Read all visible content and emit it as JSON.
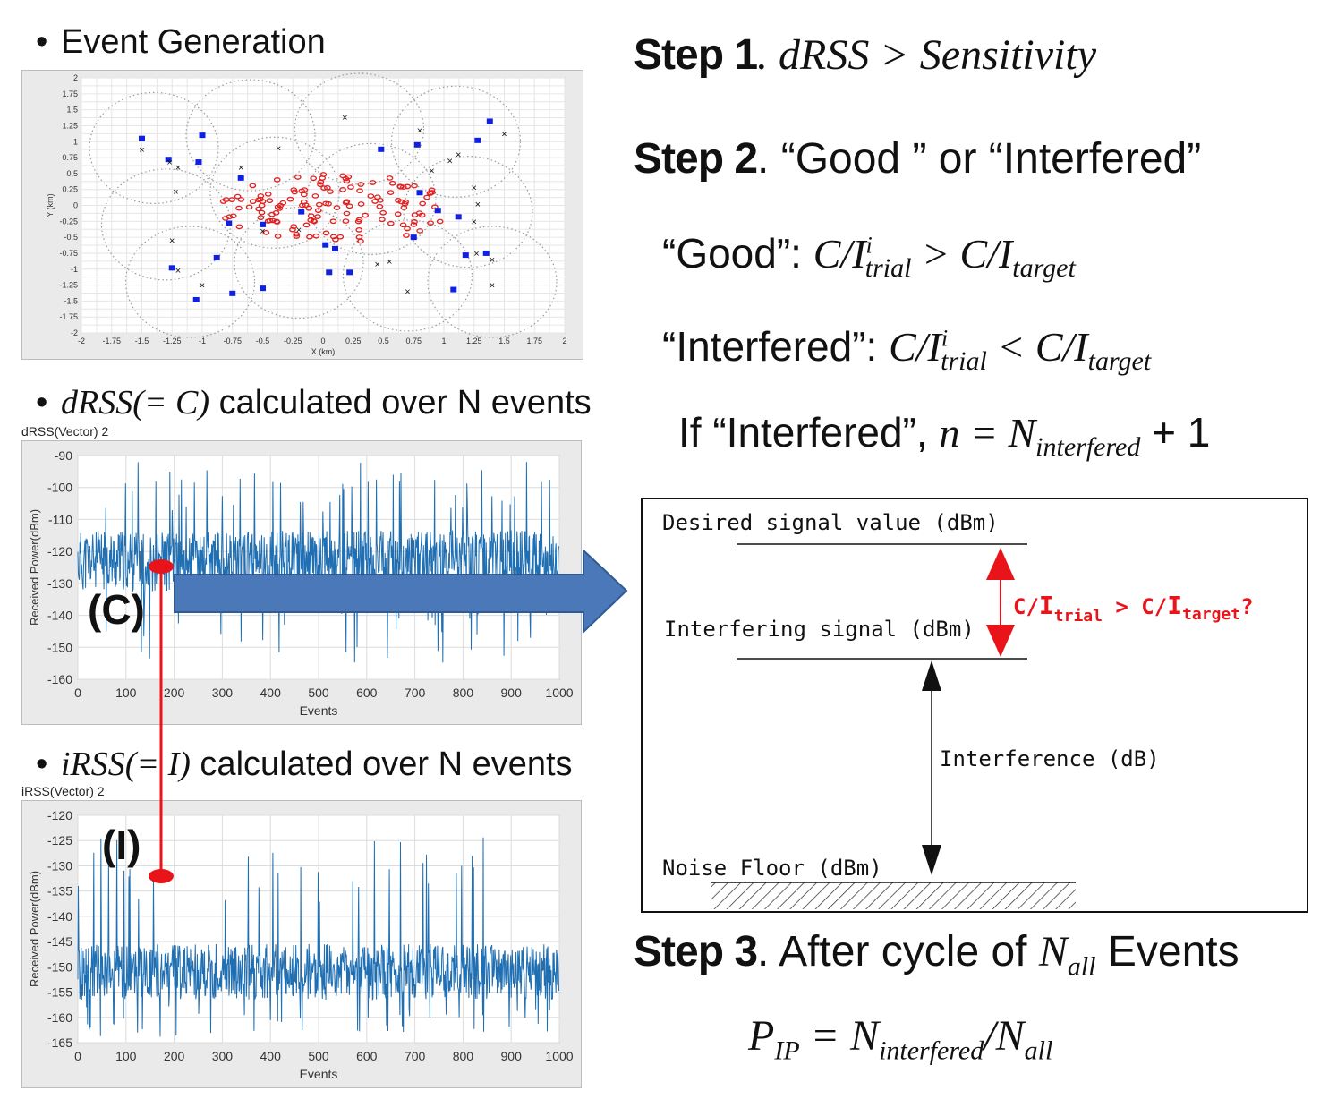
{
  "bullets": {
    "event_generation": "Event Generation",
    "drss_math": "dRSS(= C)",
    "drss_text": " calculated over N events",
    "irss_math": "iRSS(= I)",
    "irss_text": " calculated over N events"
  },
  "scatter_plot": {
    "ylabel": "Y (km)",
    "xlabel": "X (km)",
    "xticks": [
      "-2",
      "-1.75",
      "-1.5",
      "-1.25",
      "-1",
      "-0.75",
      "-0.5",
      "-0.25",
      "0",
      "0.25",
      "0.5",
      "0.75",
      "1",
      "1.25",
      "1.5",
      "1.75",
      "2"
    ],
    "yticks": [
      "2",
      "1.75",
      "1.5",
      "1.25",
      "1",
      "0.75",
      "0.5",
      "0.25",
      "0",
      "-0.25",
      "-0.5",
      "-0.75",
      "-1",
      "-1.25",
      "-1.5",
      "-1.75",
      "-2"
    ]
  },
  "drss_plot": {
    "title": "dRSS(Vector) 2",
    "ylabel": "Received Power(dBm)",
    "xlabel": "Events",
    "xticks": [
      "0",
      "100",
      "200",
      "300",
      "400",
      "500",
      "600",
      "700",
      "800",
      "900",
      "1000"
    ],
    "yticks": [
      "-90",
      "-100",
      "-110",
      "-120",
      "-130",
      "-140",
      "-150",
      "-160"
    ],
    "marker_label": "(C)"
  },
  "irss_plot": {
    "title": "iRSS(Vector) 2",
    "ylabel": "Received Power(dBm)",
    "xlabel": "Events",
    "xticks": [
      "0",
      "100",
      "200",
      "300",
      "400",
      "500",
      "600",
      "700",
      "800",
      "900",
      "1000"
    ],
    "yticks": [
      "-120",
      "-125",
      "-130",
      "-135",
      "-140",
      "-145",
      "-150",
      "-155",
      "-160",
      "-165"
    ],
    "marker_label": "(I)"
  },
  "steps": {
    "step1_label": "Step 1",
    "step1_expr": ". dRSS > Sensitivity",
    "step2_label": "Step 2",
    "step2_text": ". “Good ” or “Interfered”",
    "good_label": "“Good”: ",
    "interfered_label": "“Interfered”: ",
    "if_label": "If “Interfered”, ",
    "step3_label": "Step 3",
    "step3_text": ". After cycle of ",
    "step3_events": " Events"
  },
  "diagram": {
    "desired": "Desired signal value (dBm)",
    "interfering": "Interfering signal (dBm)",
    "interference": "Interference (dB)",
    "noise": "Noise Floor (dBm)",
    "ci_question": "C/I",
    "trial": "trial",
    "target": "target",
    "accent_color": "#e8141a"
  },
  "colors": {
    "series": "#1f6fb2",
    "arrow_fill": "#4a78b8",
    "marker": "#e8141a",
    "tx_square": "#1020e0",
    "rx_circle": "#e02020"
  },
  "chart_data": [
    {
      "type": "scatter",
      "title": "",
      "xlabel": "X (km)",
      "ylabel": "Y (km)",
      "xlim": [
        -2,
        2
      ],
      "ylim": [
        -2,
        2
      ],
      "series": [
        {
          "marker": "square",
          "points": [
            [
              -1.5,
              1.05
            ],
            [
              -1.28,
              0.72
            ],
            [
              -1,
              1.1
            ],
            [
              -1.03,
              0.68
            ],
            [
              -0.68,
              0.43
            ],
            [
              -0.78,
              -0.28
            ],
            [
              -1.25,
              -0.98
            ],
            [
              -0.88,
              -0.82
            ],
            [
              -0.75,
              -1.38
            ],
            [
              -1.05,
              -1.48
            ],
            [
              -0.5,
              -0.3
            ],
            [
              -0.5,
              -1.3
            ],
            [
              -0.18,
              -0.1
            ],
            [
              0.02,
              -0.62
            ],
            [
              0.1,
              -0.68
            ],
            [
              0.05,
              -1.05
            ],
            [
              0.22,
              -1.05
            ],
            [
              0.48,
              0.88
            ],
            [
              0.78,
              0.95
            ],
            [
              0.8,
              0.2
            ],
            [
              0.95,
              -0.08
            ],
            [
              0.75,
              -0.5
            ],
            [
              1.12,
              -0.18
            ],
            [
              1.18,
              -0.78
            ],
            [
              1.35,
              -0.75
            ],
            [
              1.08,
              -1.32
            ],
            [
              1.28,
              1.02
            ],
            [
              1.38,
              1.32
            ]
          ]
        },
        {
          "marker": "x",
          "points": [
            [
              -1.5,
              0.88
            ],
            [
              -1.27,
              0.68
            ],
            [
              -1.2,
              0.6
            ],
            [
              -1.22,
              0.22
            ],
            [
              -1.25,
              -0.55
            ],
            [
              -1.2,
              -1.02
            ],
            [
              -1.0,
              -1.25
            ],
            [
              -0.68,
              0.6
            ],
            [
              -0.5,
              -0.4
            ],
            [
              -0.37,
              0.9
            ],
            [
              -0.2,
              -0.38
            ],
            [
              0.18,
              1.38
            ],
            [
              0.45,
              -0.92
            ],
            [
              0.55,
              -0.88
            ],
            [
              0.7,
              -1.35
            ],
            [
              0.8,
              1.18
            ],
            [
              0.9,
              0.55
            ],
            [
              1.05,
              0.7
            ],
            [
              1.12,
              0.8
            ],
            [
              1.25,
              0.28
            ],
            [
              1.28,
              0.02
            ],
            [
              1.25,
              -0.25
            ],
            [
              1.27,
              -0.75
            ],
            [
              1.4,
              -0.85
            ],
            [
              1.4,
              -1.25
            ],
            [
              1.5,
              1.12
            ]
          ]
        }
      ]
    },
    {
      "type": "line",
      "title": "dRSS(Vector) 2",
      "xlabel": "Events",
      "ylabel": "Received Power(dBm)",
      "xlim": [
        0,
        1000
      ],
      "ylim": [
        -160,
        -90
      ],
      "series": [
        {
          "n": 1000,
          "center": -123,
          "spread_low": -135,
          "spread_high": -100,
          "min": -155,
          "max": -92
        }
      ],
      "highlight": {
        "x": 175,
        "y": -125,
        "label": "(C)"
      }
    },
    {
      "type": "line",
      "title": "iRSS(Vector) 2",
      "xlabel": "Events",
      "ylabel": "Received Power(dBm)",
      "xlim": [
        0,
        1000
      ],
      "ylim": [
        -165,
        -120
      ],
      "series": [
        {
          "n": 1000,
          "center": -151,
          "spread_low": -160,
          "spread_high": -140,
          "min": -164,
          "max": -124
        }
      ],
      "highlight": {
        "x": 175,
        "y": -132,
        "label": "(I)"
      }
    }
  ]
}
